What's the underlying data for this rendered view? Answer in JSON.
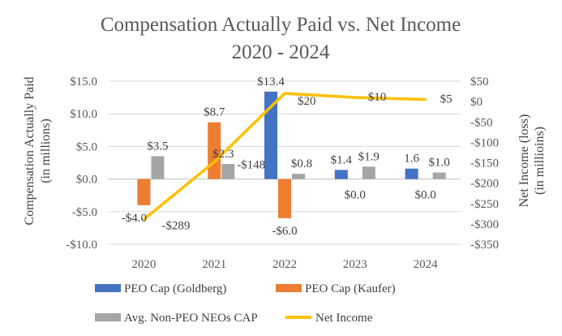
{
  "chart_data": {
    "type": "bar",
    "title_lines": [
      "Compensation Actually Paid vs. Net Income",
      "2020 - 2024"
    ],
    "categories": [
      "2020",
      "2021",
      "2022",
      "2023",
      "2024"
    ],
    "ylabel_lines": [
      "Compensation Actually Paid",
      "(in millions)"
    ],
    "y2label_lines": [
      "Net Income (loss)",
      "(in millioins)"
    ],
    "ylim": [
      -10,
      15
    ],
    "y_ticks": [
      15,
      10,
      5,
      0,
      -5,
      -10
    ],
    "y_tick_labels": [
      "$15.0",
      "$10.0",
      "$5.0",
      "$0.0",
      "-$5.0",
      "-$10.0"
    ],
    "y2lim": [
      -350,
      50
    ],
    "y2_ticks": [
      50,
      0,
      -50,
      -100,
      -150,
      -200,
      -250,
      -300,
      -350
    ],
    "y2_tick_labels": [
      "$50",
      "$0",
      "-$50",
      "-$100",
      "-$150",
      "-$200",
      "-$250",
      "-$300",
      "-$350"
    ],
    "series": [
      {
        "name": "PEO Cap (Goldberg)",
        "color": "#4472C4",
        "values": [
          null,
          null,
          13.4,
          1.4,
          1.6
        ],
        "labels": [
          "",
          "",
          "$13.4",
          "$1.4",
          "1.6"
        ]
      },
      {
        "name": "PEO Cap (Kaufer)",
        "color": "#ED7D31",
        "values": [
          -4.0,
          8.7,
          -6.0,
          0.0,
          0.0
        ],
        "labels": [
          "-$4.0",
          "$8.7",
          "-$6.0",
          "$0.0",
          "$0.0"
        ]
      },
      {
        "name": "Avg. Non-PEO NEOs CAP",
        "color": "#A5A5A5",
        "values": [
          3.5,
          2.3,
          0.8,
          1.9,
          1.0
        ],
        "labels": [
          "$3.5",
          "$2.3",
          "$0.8",
          "$1.9",
          "$1.0"
        ]
      }
    ],
    "line_series": {
      "name": "Net Income",
      "color": "#FFC000",
      "axis": "secondary",
      "values": [
        -289,
        -148,
        20,
        10,
        5
      ],
      "labels": [
        "-$289",
        "-$148",
        "$20",
        "$10",
        "$5"
      ]
    },
    "legend": "bottom"
  }
}
